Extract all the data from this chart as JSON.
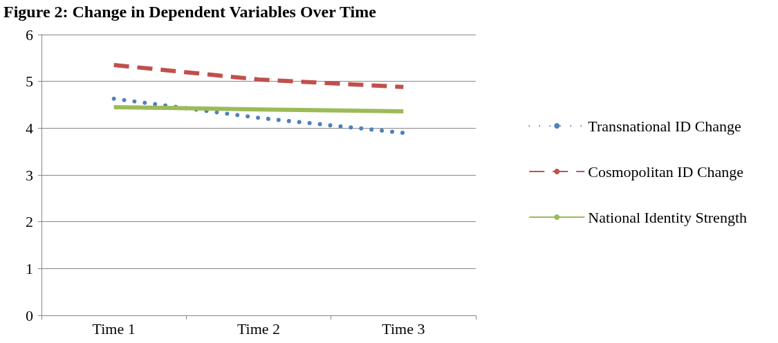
{
  "chart_data": {
    "type": "line",
    "title": "Figure 2: Change in Dependent Variables Over Time",
    "categories": [
      "Time 1",
      "Time 2",
      "Time 3"
    ],
    "series": [
      {
        "name": "Transnational ID Change",
        "color": "#4f81bd",
        "line_style": "dotted",
        "values": [
          4.63,
          4.22,
          3.9
        ]
      },
      {
        "name": "Cosmopolitan ID Change",
        "color": "#c0504d",
        "line_style": "dashed",
        "values": [
          5.35,
          5.04,
          4.88
        ]
      },
      {
        "name": "National Identity Strength",
        "color": "#9bbb59",
        "line_style": "solid",
        "values": [
          4.45,
          4.4,
          4.36
        ]
      }
    ],
    "ylim": [
      0,
      6
    ],
    "yticks": [
      0,
      1,
      2,
      3,
      4,
      5,
      6
    ],
    "grid": "y",
    "legend": "right",
    "marker": "none"
  }
}
